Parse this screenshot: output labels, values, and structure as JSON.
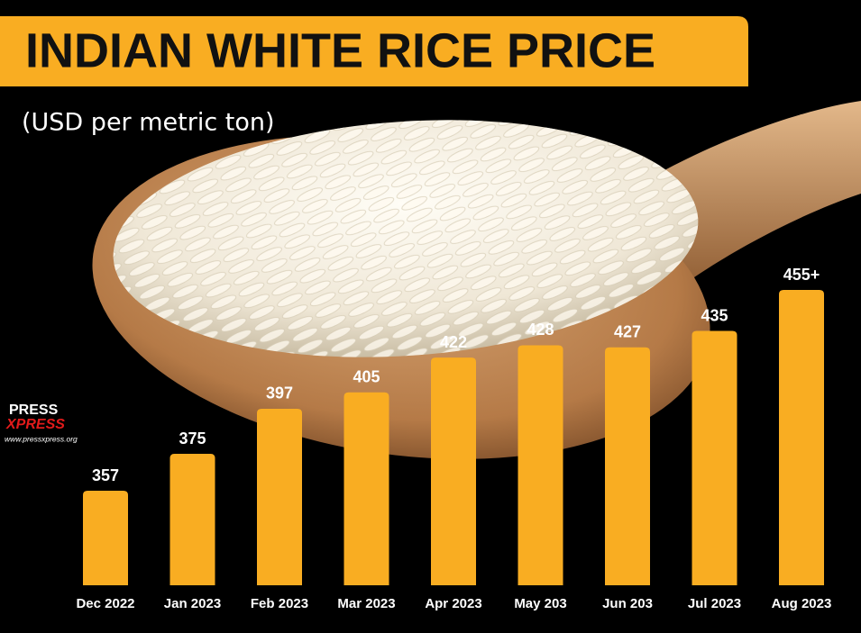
{
  "chart_data": {
    "type": "bar",
    "title": "INDIAN WHITE RICE PRICE",
    "subtitle": "(USD per metric ton)",
    "categories": [
      "Dec 2022",
      "Jan 2023",
      "Feb 2023",
      "Mar 2023",
      "Apr 2023",
      "May 203",
      "Jun 203",
      "Jul 2023",
      "Aug 2023"
    ],
    "values": [
      357,
      375,
      397,
      405,
      422,
      428,
      427,
      435,
      455
    ],
    "value_labels": [
      "357",
      "375",
      "397",
      "405",
      "422",
      "428",
      "427",
      "435",
      "455+"
    ],
    "color": "#f9ad22",
    "source": {
      "brand_top": "PRESS",
      "brand_bottom": "XPRESS",
      "url": "www.pressxpress.org"
    }
  }
}
